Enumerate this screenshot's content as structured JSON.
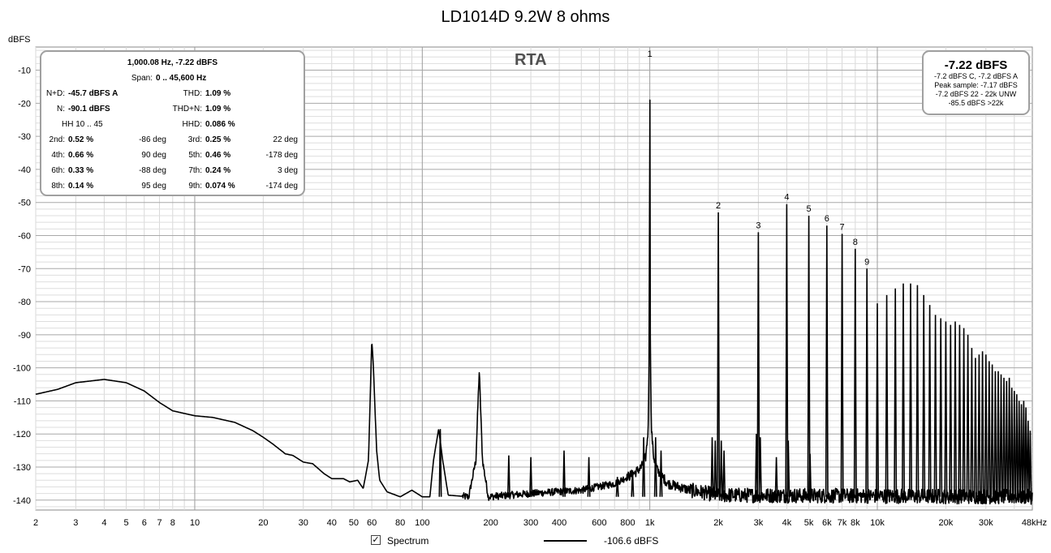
{
  "chart_data": {
    "type": "line",
    "title": "LD1014D 9.2W 8 ohms",
    "ylabel": "dBFS",
    "xlabel": "",
    "x_scale": "log",
    "xlim": [
      2,
      48000
    ],
    "ylim": [
      -143,
      -3
    ],
    "grid": true,
    "x_tick_labels": [
      {
        "v": 2,
        "t": "2"
      },
      {
        "v": 3,
        "t": "3"
      },
      {
        "v": 4,
        "t": "4"
      },
      {
        "v": 5,
        "t": "5"
      },
      {
        "v": 6,
        "t": "6"
      },
      {
        "v": 7,
        "t": "7"
      },
      {
        "v": 8,
        "t": "8"
      },
      {
        "v": 10,
        "t": "10"
      },
      {
        "v": 20,
        "t": "20"
      },
      {
        "v": 30,
        "t": "30"
      },
      {
        "v": 40,
        "t": "40"
      },
      {
        "v": 50,
        "t": "50"
      },
      {
        "v": 60,
        "t": "60"
      },
      {
        "v": 80,
        "t": "80"
      },
      {
        "v": 100,
        "t": "100"
      },
      {
        "v": 200,
        "t": "200"
      },
      {
        "v": 300,
        "t": "300"
      },
      {
        "v": 400,
        "t": "400"
      },
      {
        "v": 600,
        "t": "600"
      },
      {
        "v": 800,
        "t": "800"
      },
      {
        "v": 1000,
        "t": "1k"
      },
      {
        "v": 2000,
        "t": "2k"
      },
      {
        "v": 3000,
        "t": "3k"
      },
      {
        "v": 4000,
        "t": "4k"
      },
      {
        "v": 5000,
        "t": "5k"
      },
      {
        "v": 6000,
        "t": "6k"
      },
      {
        "v": 7000,
        "t": "7k"
      },
      {
        "v": 8000,
        "t": "8k"
      },
      {
        "v": 10000,
        "t": "10k"
      },
      {
        "v": 20000,
        "t": "20k"
      },
      {
        "v": 30000,
        "t": "30k"
      },
      {
        "v": 48000,
        "t": "48kHz"
      }
    ],
    "y_ticks": [
      -10,
      -20,
      -30,
      -40,
      -50,
      -60,
      -70,
      -80,
      -90,
      -100,
      -110,
      -120,
      -130,
      -140
    ],
    "series": [
      {
        "name": "Spectrum",
        "color": "#000000",
        "baseline": [
          [
            2,
            -108
          ],
          [
            2.5,
            -106.5
          ],
          [
            3,
            -104.5
          ],
          [
            4,
            -103.5
          ],
          [
            5,
            -104.5
          ],
          [
            6,
            -107
          ],
          [
            7,
            -110.5
          ],
          [
            8,
            -113
          ],
          [
            10,
            -114.5
          ],
          [
            12,
            -115
          ],
          [
            15,
            -116.5
          ],
          [
            18,
            -119
          ],
          [
            20,
            -121
          ],
          [
            22,
            -123
          ],
          [
            25,
            -126
          ],
          [
            27,
            -126.5
          ],
          [
            30,
            -128.5
          ],
          [
            33,
            -129
          ],
          [
            37,
            -132
          ],
          [
            40,
            -133.5
          ],
          [
            45,
            -133.5
          ],
          [
            48,
            -134.5
          ],
          [
            52,
            -134
          ],
          [
            55,
            -136.5
          ],
          [
            58,
            -128
          ],
          [
            59,
            -110
          ],
          [
            60,
            -91.5
          ],
          [
            61,
            -100
          ],
          [
            63,
            -125
          ],
          [
            65,
            -134
          ],
          [
            70,
            -137.5
          ],
          [
            80,
            -139
          ],
          [
            90,
            -137
          ],
          [
            100,
            -139
          ],
          [
            108,
            -139
          ],
          [
            112,
            -128
          ],
          [
            118,
            -118.5
          ],
          [
            123,
            -128
          ],
          [
            130,
            -138.5
          ],
          [
            160,
            -139
          ],
          [
            172,
            -128
          ],
          [
            178,
            -101
          ],
          [
            184,
            -128
          ],
          [
            195,
            -139
          ],
          [
            300,
            -138
          ],
          [
            500,
            -137
          ],
          [
            700,
            -135
          ],
          [
            850,
            -132
          ],
          [
            920,
            -130
          ],
          [
            960,
            -127
          ],
          [
            985,
            -118
          ],
          [
            995,
            -90
          ],
          [
            1000,
            -7.2
          ],
          [
            1005,
            -90
          ],
          [
            1015,
            -118
          ],
          [
            1040,
            -127
          ],
          [
            1080,
            -131
          ],
          [
            1200,
            -135
          ],
          [
            1500,
            -137
          ],
          [
            2000,
            -138.5
          ],
          [
            48000,
            -139
          ]
        ],
        "peaks": [
          {
            "f": 120,
            "db": -118.5
          },
          {
            "f": 240,
            "db": -126.5
          },
          {
            "f": 300,
            "db": -127
          },
          {
            "f": 420,
            "db": -125
          },
          {
            "f": 540,
            "db": -127
          },
          {
            "f": 720,
            "db": -133
          },
          {
            "f": 840,
            "db": -131
          },
          {
            "f": 940,
            "db": -121
          },
          {
            "f": 1060,
            "db": -121
          },
          {
            "f": 1120,
            "db": -125
          },
          {
            "f": 1880,
            "db": -121
          },
          {
            "f": 1940,
            "db": -122
          },
          {
            "f": 2000,
            "db": -53
          },
          {
            "f": 2060,
            "db": -122
          },
          {
            "f": 2120,
            "db": -125
          },
          {
            "f": 2940,
            "db": -120
          },
          {
            "f": 3000,
            "db": -59
          },
          {
            "f": 3060,
            "db": -121
          },
          {
            "f": 3600,
            "db": -127
          },
          {
            "f": 4000,
            "db": -50.5
          },
          {
            "f": 4060,
            "db": -122
          },
          {
            "f": 5000,
            "db": -54
          },
          {
            "f": 5060,
            "db": -126
          },
          {
            "f": 6000,
            "db": -57
          },
          {
            "f": 7000,
            "db": -59.5
          },
          {
            "f": 8000,
            "db": -64
          },
          {
            "f": 9000,
            "db": -70
          },
          {
            "f": 10000,
            "db": -80.5
          },
          {
            "f": 11000,
            "db": -78
          },
          {
            "f": 12000,
            "db": -76
          },
          {
            "f": 13000,
            "db": -74.5
          },
          {
            "f": 14000,
            "db": -74.5
          },
          {
            "f": 15000,
            "db": -75
          },
          {
            "f": 16000,
            "db": -78
          },
          {
            "f": 17000,
            "db": -81
          },
          {
            "f": 18000,
            "db": -84
          },
          {
            "f": 19000,
            "db": -85
          },
          {
            "f": 20000,
            "db": -86
          },
          {
            "f": 21000,
            "db": -87
          },
          {
            "f": 22000,
            "db": -86
          },
          {
            "f": 23000,
            "db": -87
          },
          {
            "f": 24000,
            "db": -88
          },
          {
            "f": 25000,
            "db": -90
          },
          {
            "f": 26000,
            "db": -94
          },
          {
            "f": 27000,
            "db": -97
          },
          {
            "f": 28000,
            "db": -96
          },
          {
            "f": 29000,
            "db": -95
          },
          {
            "f": 30000,
            "db": -96
          },
          {
            "f": 31000,
            "db": -98
          },
          {
            "f": 32000,
            "db": -99
          },
          {
            "f": 33000,
            "db": -101
          },
          {
            "f": 34000,
            "db": -101
          },
          {
            "f": 35000,
            "db": -102
          },
          {
            "f": 36000,
            "db": -103
          },
          {
            "f": 37000,
            "db": -104
          },
          {
            "f": 38000,
            "db": -103
          },
          {
            "f": 39000,
            "db": -106
          },
          {
            "f": 40000,
            "db": -107
          },
          {
            "f": 41000,
            "db": -108
          },
          {
            "f": 42000,
            "db": -110
          },
          {
            "f": 43000,
            "db": -111
          },
          {
            "f": 44000,
            "db": -110
          },
          {
            "f": 45000,
            "db": -112
          },
          {
            "f": 46000,
            "db": -116
          },
          {
            "f": 47000,
            "db": -119
          }
        ]
      }
    ],
    "harmonic_markers": [
      {
        "label": "1",
        "f": 1000,
        "db": -7.2
      },
      {
        "label": "2",
        "f": 2000,
        "db": -53
      },
      {
        "label": "3",
        "f": 3000,
        "db": -59
      },
      {
        "label": "4",
        "f": 4000,
        "db": -50.5
      },
      {
        "label": "5",
        "f": 5000,
        "db": -54
      },
      {
        "label": "6",
        "f": 6000,
        "db": -57
      },
      {
        "label": "7",
        "f": 7000,
        "db": -59.5
      },
      {
        "label": "8",
        "f": 8000,
        "db": -64
      },
      {
        "label": "9",
        "f": 9000,
        "db": -70
      }
    ]
  },
  "overlay": {
    "rta_label": "RTA",
    "stats": {
      "freq_level": "1,000.08 Hz, -7.22 dBFS",
      "span_label": "Span:",
      "span_value": "0 .. 45,600 Hz",
      "nd_label": "N+D:",
      "nd_value": "-45.7 dBFS A",
      "thd_label": "THD:",
      "thd_value": "1.09 %",
      "n_label": "N:",
      "n_value": "-90.1 dBFS",
      "thdn_label": "THD+N:",
      "thdn_value": "1.09 %",
      "hh_range": "HH 10 .. 45",
      "hhd_label": "HHD:",
      "hhd_value": "0.086 %",
      "harmonics": [
        {
          "l1": "2nd:",
          "v1": "0.52 %",
          "p1": "-86 deg",
          "l2": "3rd:",
          "v2": "0.25 %",
          "p2": "22 deg"
        },
        {
          "l1": "4th:",
          "v1": "0.66 %",
          "p1": "90 deg",
          "l2": "5th:",
          "v2": "0.46 %",
          "p2": "-178 deg"
        },
        {
          "l1": "6th:",
          "v1": "0.33 %",
          "p1": "-88 deg",
          "l2": "7th:",
          "v2": "0.24 %",
          "p2": "3 deg"
        },
        {
          "l1": "8th:",
          "v1": "0.14 %",
          "p1": "95 deg",
          "l2": "9th:",
          "v2": "0.074 %",
          "p2": "-174 deg"
        }
      ]
    },
    "level": {
      "main": "-7.22 dBFS",
      "line1": "-7.2 dBFS C, -7.2 dBFS A",
      "line2": "Peak sample: -7.17 dBFS",
      "line3": "-7.2 dBFS 22 - 22k UNW",
      "line4": "-85.5 dBFS >22k"
    }
  },
  "legend": {
    "checkbox_mark": "✓",
    "label": "Spectrum",
    "value": "-106.6 dBFS"
  }
}
